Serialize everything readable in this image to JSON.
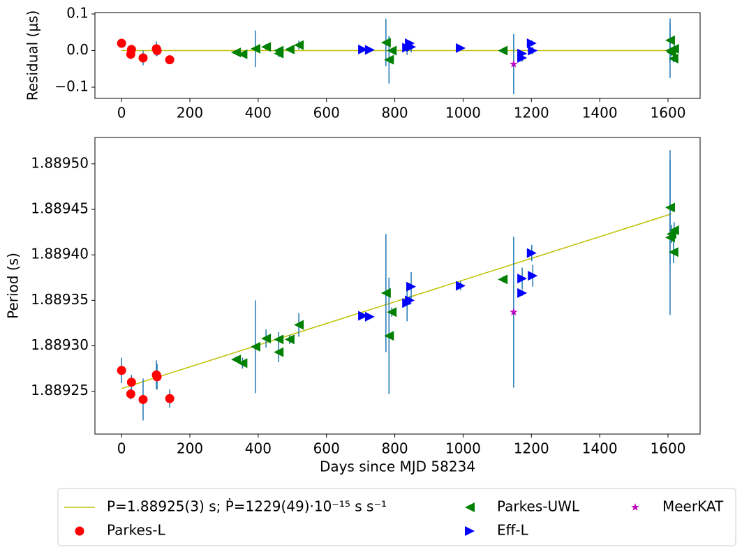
{
  "chart_data": [
    {
      "type": "scatter",
      "ylabel": "Residual (μs)",
      "xlim": [
        -78,
        1694
      ],
      "xticks": [
        0,
        200,
        400,
        600,
        800,
        1000,
        1200,
        1400,
        1600
      ],
      "ylim": [
        -0.1305,
        0.1038
      ],
      "yticks": [
        {
          "value": -0.1,
          "label": "−0.1"
        },
        {
          "value": 0,
          "label": "0.0"
        },
        0.1
      ],
      "error_color": "#1f77b4",
      "series": [
        {
          "name": "P=1.88925(3) s; Ṗ=1229(49)·10⁻¹⁵ s s⁻¹",
          "mark": "line",
          "color": "#bfbf00",
          "x": [
            0,
            1610
          ],
          "values": [
            0,
            0
          ]
        },
        {
          "name": "Parkes-L",
          "mark": "circle",
          "color": "#ff0000",
          "x": [
            0,
            29,
            27,
            63,
            102,
            104,
            141
          ],
          "values": [
            0.02,
            0.003,
            -0.01,
            -0.02,
            0.005,
            0.0,
            -0.025
          ],
          "errors": [
            0.01,
            0.005,
            0.005,
            0.02,
            0.02,
            0.015,
            0.005
          ]
        },
        {
          "name": "Parkes-UWL",
          "mark": "triangle-left",
          "color": "#008000",
          "x": [
            335,
            354,
            392,
            423,
            460,
            460,
            492,
            519,
            774,
            783,
            791,
            1116,
            1606,
            1606,
            1610,
            1616,
            1618
          ],
          "values": [
            -0.005,
            -0.01,
            0.005,
            0.01,
            0.0,
            -0.008,
            0.003,
            0.015,
            0.022,
            -0.025,
            0.0,
            0.0,
            0.028,
            0.0,
            -0.005,
            -0.022,
            0.005
          ],
          "errors": [
            0.003,
            0.003,
            0.05,
            0.008,
            0.006,
            0.01,
            0.005,
            0.012,
            0.065,
            0.065,
            0.003,
            0.003,
            0.06,
            0.075,
            0.01,
            0.01,
            0.01
          ]
        },
        {
          "name": "Eff-L",
          "mark": "triangle-right",
          "color": "#0000ff",
          "x": [
            707,
            727,
            836,
            844,
            848,
            993,
            1173,
            1173,
            1201,
            1204
          ],
          "values": [
            0.003,
            0.002,
            0.008,
            0.02,
            0.01,
            0.007,
            -0.02,
            -0.008,
            0.02,
            0.0
          ],
          "errors": [
            0.003,
            0.003,
            0.02,
            0.005,
            0.015,
            0.003,
            0.01,
            0.003,
            0.008,
            0.01
          ]
        },
        {
          "name": "MeerKAT",
          "mark": "star",
          "color": "#bf00bf",
          "x": [
            1148
          ],
          "values": [
            -0.037
          ],
          "errors": [
            0.082
          ]
        }
      ]
    },
    {
      "type": "scatter",
      "ylabel": "Period (s)",
      "xlabel": "Days since MJD 58234",
      "legend": "outside lower center",
      "xlim": [
        -78,
        1694
      ],
      "xticks": [
        0,
        200,
        400,
        600,
        800,
        1000,
        1200,
        1400,
        1600
      ],
      "ylim": [
        1.889203,
        1.889529
      ],
      "yticks": [
        1.88925,
        {
          "value": 1.8893,
          "label": "1.88930"
        },
        1.88935,
        {
          "value": 1.8894,
          "label": "1.88940"
        },
        1.88945,
        {
          "value": 1.8895,
          "label": "1.88950"
        }
      ],
      "error_color": "#1f77b4",
      "series": [
        {
          "name": "P=1.88925(3) s; Ṗ=1229(49)·10⁻¹⁵ s s⁻¹",
          "mark": "line",
          "color": "#bfbf00",
          "x": [
            0,
            1610
          ],
          "values": [
            1.889253,
            1.889445
          ]
        },
        {
          "name": "Parkes-L",
          "mark": "circle",
          "color": "#ff0000",
          "x": [
            0,
            29,
            27,
            63,
            102,
            104,
            141
          ],
          "values": [
            1.889273,
            1.88926,
            1.889247,
            1.889241,
            1.889268,
            1.889266,
            1.889242
          ],
          "errors": [
            1.4e-05,
            8e-06,
            6e-06,
            2.3e-05,
            1.6e-05,
            1.4e-05,
            1e-05
          ]
        },
        {
          "name": "Parkes-UWL",
          "mark": "triangle-left",
          "color": "#008000",
          "x": [
            335,
            354,
            392,
            423,
            460,
            460,
            492,
            519,
            774,
            783,
            791,
            1116,
            1606,
            1606,
            1610,
            1616,
            1618
          ],
          "values": [
            1.889285,
            1.889281,
            1.889299,
            1.889308,
            1.889307,
            1.889293,
            1.889307,
            1.889323,
            1.889358,
            1.889311,
            1.889337,
            1.889373,
            1.889452,
            1.889419,
            1.889423,
            1.889403,
            1.889427
          ],
          "errors": [
            3e-06,
            6e-06,
            5.1e-05,
            1e-05,
            8e-06,
            1.1e-05,
            5e-06,
            1.3e-05,
            6.5e-05,
            6.4e-05,
            5e-06,
            3e-06,
            6.3e-05,
            8.5e-05,
            1e-05,
            1.2e-05,
            9e-06
          ]
        },
        {
          "name": "Eff-L",
          "mark": "triangle-right",
          "color": "#0000ff",
          "x": [
            707,
            727,
            836,
            844,
            848,
            993,
            1173,
            1173,
            1201,
            1204
          ],
          "values": [
            1.889333,
            1.889332,
            1.889347,
            1.88935,
            1.889365,
            1.889366,
            1.889374,
            1.889358,
            1.889402,
            1.889377
          ],
          "errors": [
            3e-06,
            2e-06,
            2e-05,
            5e-06,
            1.6e-05,
            5e-06,
            1.2e-05,
            3e-06,
            9e-06,
            1.2e-05
          ]
        },
        {
          "name": "MeerKAT",
          "mark": "star",
          "color": "#bf00bf",
          "x": [
            1148
          ],
          "values": [
            1.889337
          ],
          "errors": [
            8.3e-05
          ]
        }
      ]
    }
  ]
}
